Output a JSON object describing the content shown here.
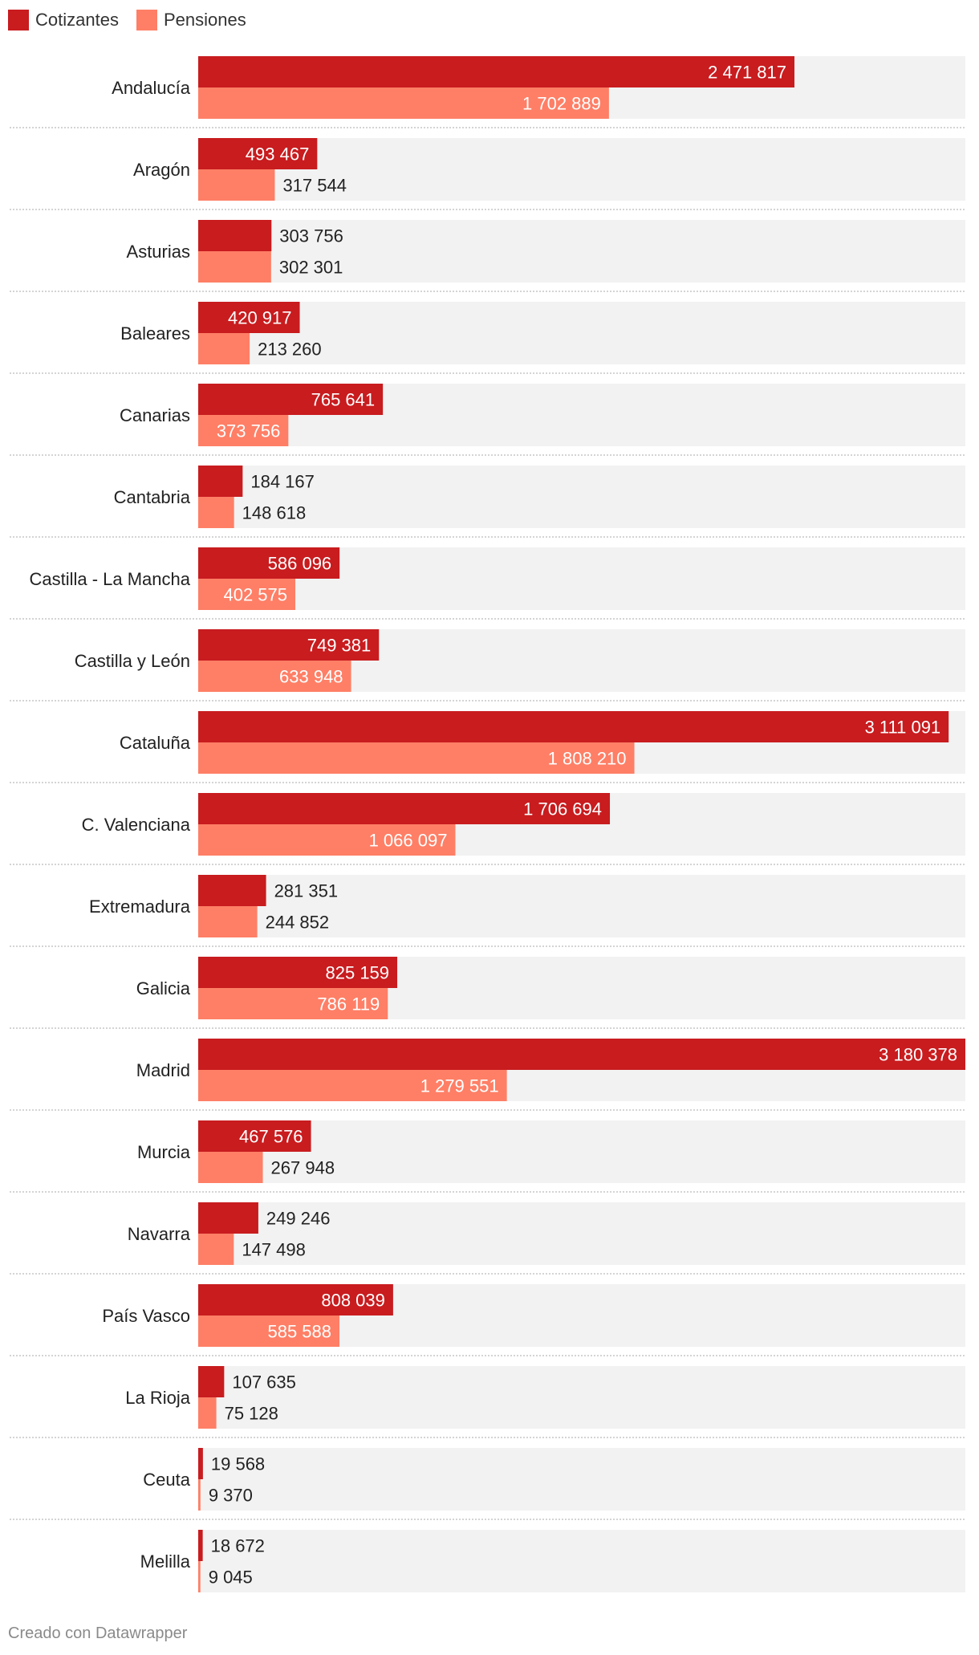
{
  "legend": {
    "cotizantes_label": "Cotizantes",
    "pensiones_label": "Pensiones"
  },
  "colors": {
    "cotizantes": "#c81c1f",
    "pensiones": "#fe7f66",
    "row_background": "#f2f2f2",
    "separator": "#bbbbbb"
  },
  "footer": {
    "credit": "Creado con Datawrapper"
  },
  "chart_data": {
    "type": "bar",
    "orientation": "horizontal",
    "title": "",
    "xlabel": "",
    "ylabel": "",
    "xlim": [
      0,
      3180378
    ],
    "legend_position": "top-left",
    "categories": [
      "Andalucía",
      "Aragón",
      "Asturias",
      "Baleares",
      "Canarias",
      "Cantabria",
      "Castilla - La Mancha",
      "Castilla y León",
      "Cataluña",
      "C. Valenciana",
      "Extremadura",
      "Galicia",
      "Madrid",
      "Murcia",
      "Navarra",
      "País Vasco",
      "La Rioja",
      "Ceuta",
      "Melilla"
    ],
    "series": [
      {
        "name": "Cotizantes",
        "values": [
          2471817,
          493467,
          303756,
          420917,
          765641,
          184167,
          586096,
          749381,
          3111091,
          1706694,
          281351,
          825159,
          3180378,
          467576,
          249246,
          808039,
          107635,
          19568,
          18672
        ],
        "labels": [
          "2 471 817",
          "493 467",
          "303 756",
          "420 917",
          "765 641",
          "184 167",
          "586 096",
          "749 381",
          "3 111 091",
          "1 706 694",
          "281 351",
          "825 159",
          "3 180 378",
          "467 576",
          "249 246",
          "808 039",
          "107 635",
          "19 568",
          "18 672"
        ]
      },
      {
        "name": "Pensiones",
        "values": [
          1702889,
          317544,
          302301,
          213260,
          373756,
          148618,
          402575,
          633948,
          1808210,
          1066097,
          244852,
          786119,
          1279551,
          267948,
          147498,
          585588,
          75128,
          9370,
          9045
        ],
        "labels": [
          "1 702 889",
          "317 544",
          "302 301",
          "213 260",
          "373 756",
          "148 618",
          "402 575",
          "633 948",
          "1 808 210",
          "1 066 097",
          "244 852",
          "786 119",
          "1 279 551",
          "267 948",
          "147 498",
          "585 588",
          "75 128",
          "9 370",
          "9 045"
        ]
      }
    ]
  }
}
